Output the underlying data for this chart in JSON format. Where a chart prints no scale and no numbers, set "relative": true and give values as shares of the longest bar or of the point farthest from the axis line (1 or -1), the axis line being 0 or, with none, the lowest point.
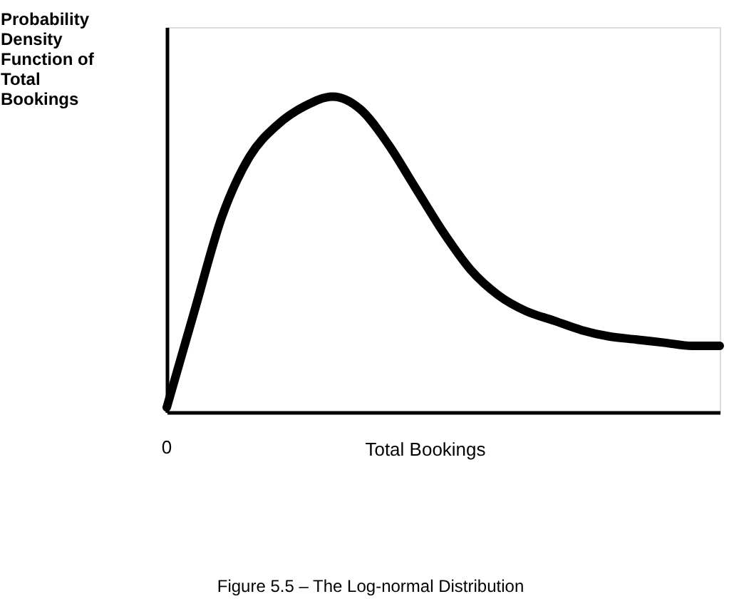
{
  "chart_data": {
    "type": "line",
    "relative": true,
    "ylabel": "Probability\nDensity\nFunction of\nTotal\nBookings",
    "xlabel": "Total Bookings",
    "annotations": [
      "0",
      "Figure 5.5 – The Log-normal Distribution"
    ],
    "categories": [
      null,
      null,
      null,
      null,
      null,
      null,
      null,
      null,
      null,
      null,
      null,
      null,
      null,
      null,
      null,
      null,
      null,
      null,
      null,
      null,
      null
    ],
    "series": [
      {
        "color": "#000000",
        "values": [
          0.015,
          0.32,
          0.62,
          0.81,
          0.91,
          0.97,
          1.0,
          0.96,
          0.85,
          0.71,
          0.57,
          0.45,
          0.37,
          0.32,
          0.29,
          0.26,
          0.24,
          0.23,
          0.22,
          0.21,
          0.21
        ]
      }
    ],
    "grid": false,
    "marker": "none",
    "line_style": "solid"
  }
}
